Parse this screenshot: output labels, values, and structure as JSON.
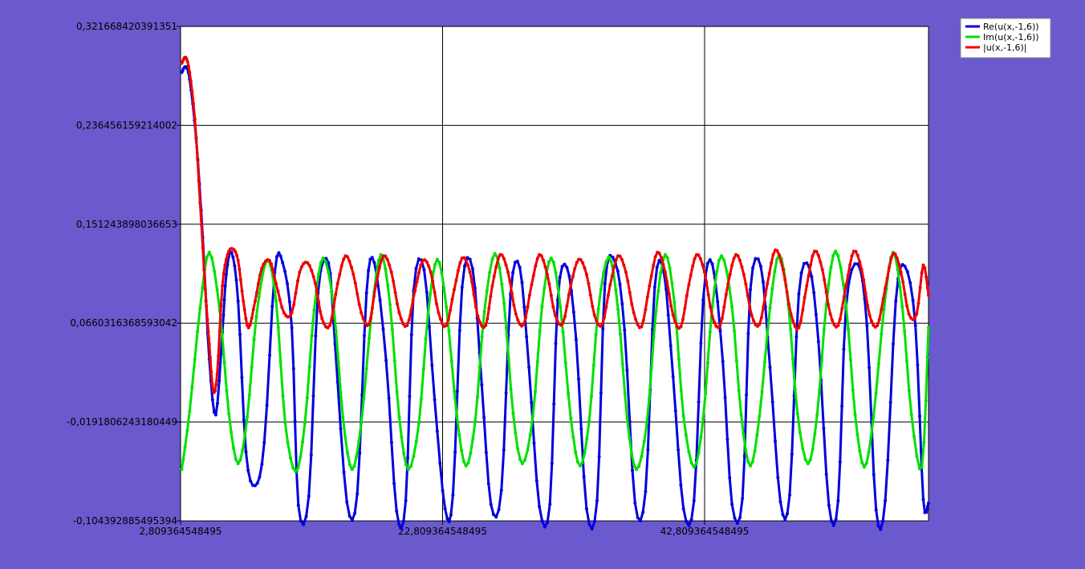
{
  "chart_data": {
    "type": "line",
    "title": "",
    "xlabel": "",
    "ylabel": "",
    "xlim": [
      2.809364548495,
      59.9
    ],
    "ylim": [
      -0.104392885495394,
      0.321668420391351
    ],
    "x_ticks": [
      {
        "value": 2.809364548495,
        "label": "2,809364548495"
      },
      {
        "value": 22.809364548495,
        "label": "22,809364548495"
      },
      {
        "value": 42.809364548495,
        "label": "42,809364548495"
      }
    ],
    "y_ticks": [
      {
        "value": 0.321668420391351,
        "label": "0,321668420391351"
      },
      {
        "value": 0.236456159214002,
        "label": "0,236456159214002"
      },
      {
        "value": 0.151243898036653,
        "label": "0,151243898036653"
      },
      {
        "value": 0.0660316368593042,
        "label": "0,0660316368593042"
      },
      {
        "value": -0.0191806243180449,
        "label": "-0,0191806243180449"
      },
      {
        "value": -0.104392885495394,
        "label": "-0,104392885495394"
      }
    ],
    "grid": true,
    "legend_position": "top-right",
    "series": [
      {
        "name": "Re(u(x,-1,6))",
        "color": "#0000dd",
        "x": [
          2.9,
          3.2,
          3.5,
          4.0,
          4.5,
          5.0,
          5.5,
          6.0,
          6.3,
          6.7,
          7.2,
          7.8,
          8.5,
          9.2,
          10.0,
          10.6,
          11.3,
          11.8,
          12.6,
          13.3,
          14.1,
          14.6,
          15.5,
          16.3,
          17.0,
          17.6,
          18.5,
          19.3,
          20.0,
          20.6,
          21.4,
          22.2,
          23.0,
          23.6,
          24.3,
          25.1,
          25.8,
          26.5,
          27.3,
          28.0,
          28.7,
          29.4,
          30.2,
          31.0,
          31.6,
          32.3,
          33.0,
          33.8,
          34.6,
          35.2,
          36.0,
          36.7,
          37.5,
          38.3,
          39.0,
          39.7,
          40.4,
          41.2,
          42.0,
          42.7,
          43.4,
          44.2,
          44.9,
          45.7,
          46.3,
          47.1,
          47.8,
          48.6,
          49.3,
          50.0,
          50.8,
          51.5,
          52.3,
          53.0,
          53.6,
          54.5,
          55.2,
          55.9,
          56.6,
          57.4,
          58.1,
          58.9,
          59.5,
          59.9
        ],
        "y": [
          0.282,
          0.287,
          0.276,
          0.225,
          0.14,
          0.035,
          -0.013,
          0.058,
          0.108,
          0.127,
          0.085,
          -0.045,
          -0.074,
          -0.037,
          0.11,
          0.118,
          0.062,
          -0.091,
          -0.083,
          0.092,
          0.118,
          0.048,
          -0.088,
          -0.081,
          0.092,
          0.118,
          0.034,
          -0.096,
          -0.087,
          0.094,
          0.112,
          0.0,
          -0.094,
          -0.082,
          0.097,
          0.113,
          0.013,
          -0.09,
          -0.078,
          0.091,
          0.114,
          0.028,
          -0.092,
          -0.09,
          0.086,
          0.114,
          0.052,
          -0.094,
          -0.087,
          0.1,
          0.118,
          0.06,
          -0.089,
          -0.079,
          0.097,
          0.11,
          0.02,
          -0.094,
          -0.087,
          0.086,
          0.117,
          0.033,
          -0.09,
          -0.085,
          0.095,
          0.115,
          0.028,
          -0.088,
          -0.082,
          0.091,
          0.114,
          0.05,
          -0.091,
          -0.087,
          0.08,
          0.117,
          0.064,
          -0.095,
          -0.087,
          0.085,
          0.115,
          0.064,
          -0.086,
          -0.089
        ]
      },
      {
        "name": "Im(u(x,-1,6))",
        "color": "#00e000",
        "x": [
          2.9,
          3.5,
          4.3,
          5.0,
          5.8,
          6.5,
          7.2,
          7.9,
          8.6,
          9.4,
          10.1,
          10.8,
          11.6,
          12.3,
          13.0,
          13.7,
          14.5,
          15.2,
          15.9,
          16.6,
          17.4,
          18.1,
          18.8,
          19.5,
          20.2,
          21.0,
          21.7,
          22.4,
          23.1,
          23.9,
          24.6,
          25.3,
          26.0,
          26.8,
          27.5,
          28.2,
          28.9,
          29.7,
          30.4,
          31.1,
          31.8,
          32.6,
          33.3,
          34.0,
          34.7,
          35.5,
          36.2,
          36.9,
          37.6,
          38.4,
          39.1,
          39.8,
          40.5,
          41.2,
          42.0,
          42.7,
          43.4,
          44.1,
          44.9,
          45.6,
          46.3,
          47.0,
          47.8,
          48.5,
          49.2,
          49.9,
          50.7,
          51.4,
          52.1,
          52.8,
          53.6,
          54.3,
          55.0,
          55.7,
          56.5,
          57.2,
          57.9,
          58.6,
          59.4,
          59.9
        ],
        "y": [
          -0.06,
          -0.01,
          0.079,
          0.127,
          0.077,
          -0.012,
          -0.055,
          -0.015,
          0.072,
          0.12,
          0.085,
          -0.02,
          -0.062,
          -0.02,
          0.077,
          0.122,
          0.08,
          -0.015,
          -0.06,
          -0.02,
          0.075,
          0.125,
          0.082,
          -0.015,
          -0.06,
          -0.02,
          0.074,
          0.121,
          0.08,
          -0.014,
          -0.057,
          -0.018,
          0.076,
          0.126,
          0.083,
          -0.012,
          -0.055,
          -0.014,
          0.08,
          0.122,
          0.08,
          -0.016,
          -0.057,
          -0.018,
          0.078,
          0.123,
          0.078,
          -0.016,
          -0.06,
          -0.02,
          0.076,
          0.125,
          0.084,
          -0.014,
          -0.058,
          -0.016,
          0.08,
          0.124,
          0.08,
          -0.013,
          -0.057,
          -0.014,
          0.079,
          0.125,
          0.082,
          -0.012,
          -0.055,
          -0.013,
          0.082,
          0.128,
          0.082,
          -0.013,
          -0.058,
          -0.015,
          0.078,
          0.127,
          0.08,
          -0.013,
          -0.058,
          0.062
        ]
      },
      {
        "name": "|u(x,-1,6)|",
        "color": "#ee0000",
        "x": [
          2.9,
          3.2,
          3.5,
          3.9,
          4.3,
          4.7,
          5.0,
          5.3,
          5.6,
          6.0,
          6.4,
          6.8,
          7.2,
          7.6,
          8.0,
          8.5,
          9.0,
          9.6,
          10.1,
          10.7,
          11.3,
          11.9,
          12.5,
          13.1,
          13.6,
          14.2,
          14.8,
          15.4,
          16.0,
          16.6,
          17.2,
          17.7,
          18.3,
          18.9,
          19.5,
          20.1,
          20.7,
          21.3,
          21.9,
          22.5,
          23.1,
          23.7,
          24.3,
          24.9,
          25.5,
          26.1,
          26.6,
          27.2,
          27.8,
          28.4,
          29.0,
          29.6,
          30.2,
          30.8,
          31.4,
          32.0,
          32.6,
          33.2,
          33.8,
          34.4,
          35.0,
          35.6,
          36.2,
          36.8,
          37.4,
          38.0,
          38.6,
          39.2,
          39.8,
          40.4,
          41.0,
          41.6,
          42.2,
          42.8,
          43.4,
          44.0,
          44.6,
          45.2,
          45.8,
          46.4,
          47.0,
          47.6,
          48.2,
          48.8,
          49.4,
          50.0,
          50.6,
          51.2,
          51.8,
          52.4,
          53.0,
          53.6,
          54.2,
          54.8,
          55.4,
          56.0,
          56.6,
          57.2,
          57.8,
          58.4,
          59.0,
          59.5,
          59.9
        ],
        "y": [
          0.29,
          0.295,
          0.282,
          0.242,
          0.17,
          0.095,
          0.048,
          0.008,
          0.022,
          0.098,
          0.125,
          0.13,
          0.12,
          0.085,
          0.062,
          0.085,
          0.113,
          0.12,
          0.1,
          0.075,
          0.075,
          0.11,
          0.118,
          0.1,
          0.07,
          0.064,
          0.1,
          0.124,
          0.108,
          0.075,
          0.065,
          0.098,
          0.124,
          0.11,
          0.075,
          0.064,
          0.094,
          0.12,
          0.11,
          0.075,
          0.064,
          0.095,
          0.122,
          0.11,
          0.072,
          0.064,
          0.098,
          0.125,
          0.11,
          0.074,
          0.065,
          0.099,
          0.125,
          0.108,
          0.073,
          0.066,
          0.099,
          0.121,
          0.108,
          0.073,
          0.065,
          0.099,
          0.124,
          0.11,
          0.075,
          0.063,
          0.098,
          0.127,
          0.11,
          0.073,
          0.063,
          0.099,
          0.125,
          0.11,
          0.072,
          0.064,
          0.1,
          0.125,
          0.108,
          0.073,
          0.065,
          0.1,
          0.129,
          0.112,
          0.074,
          0.062,
          0.098,
          0.128,
          0.112,
          0.074,
          0.064,
          0.098,
          0.128,
          0.112,
          0.073,
          0.064,
          0.096,
          0.126,
          0.11,
          0.074,
          0.074,
          0.116,
          0.09
        ]
      }
    ]
  }
}
